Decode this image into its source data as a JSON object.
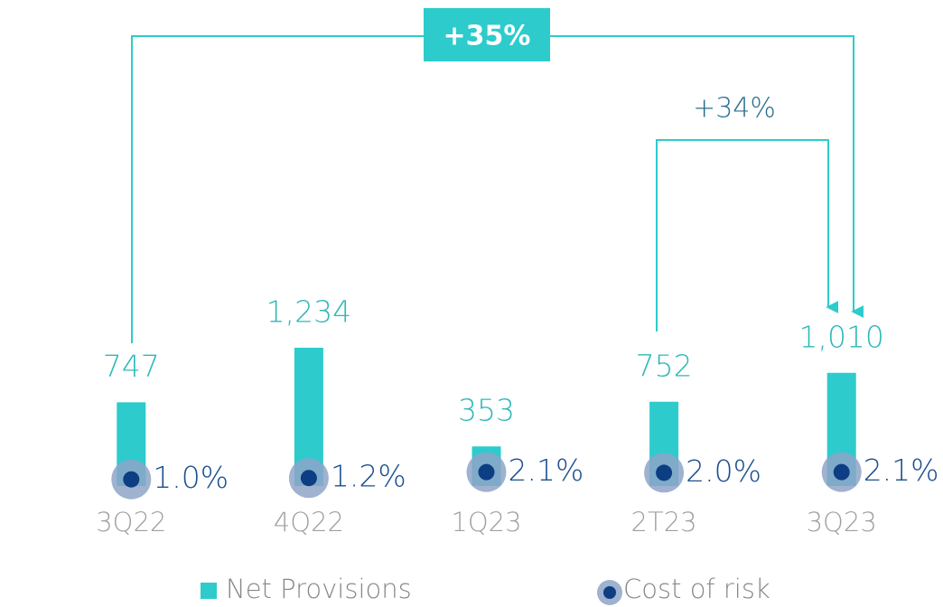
{
  "chart_data": {
    "type": "bar",
    "categories": [
      "3Q22",
      "4Q22",
      "1Q23",
      "2T23",
      "3Q23"
    ],
    "series": [
      {
        "name": "Net Provisions",
        "color": "#2dcbcc",
        "values": [
          747,
          1234,
          353,
          752,
          1010
        ],
        "value_labels": [
          "747",
          "1,234",
          "353",
          "752",
          "1,010"
        ]
      },
      {
        "name": "Cost of risk",
        "color": "#0d3d82",
        "axis": "y2",
        "values": [
          1.0,
          1.2,
          2.1,
          2.0,
          2.1
        ],
        "value_labels": [
          "1.0%",
          "1.2%",
          "2.1%",
          "2.0%",
          "2.1%"
        ]
      }
    ],
    "ylim": [
      0,
      4000
    ],
    "y2lim": [
      0,
      68
    ],
    "annotations": [
      "+35%",
      "+34%"
    ]
  }
}
